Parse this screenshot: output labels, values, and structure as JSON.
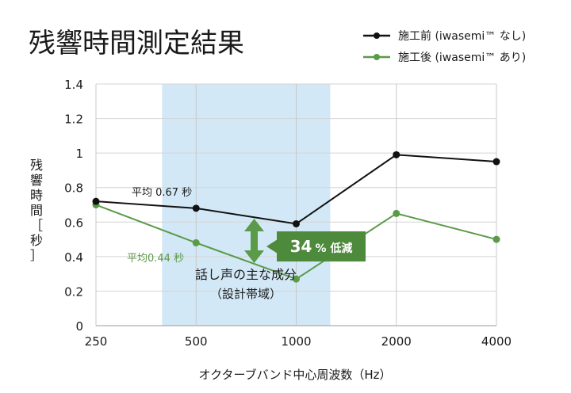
{
  "chart_data": {
    "type": "line",
    "title": "残響時間測定結果",
    "xlabel": "オクターブバンド中心周波数（Hz）",
    "ylabel_chars": [
      "残",
      "響",
      "時",
      "間",
      "［",
      "秒",
      "］"
    ],
    "categories": [
      "250",
      "500",
      "1000",
      "2000",
      "4000"
    ],
    "ylim": [
      0,
      1.4
    ],
    "yticks": [
      "0",
      "0.2",
      "0.4",
      "0.6",
      "0.8",
      "1",
      "1.2",
      "1.4"
    ],
    "ytick_values": [
      0,
      0.2,
      0.4,
      0.6,
      0.8,
      1.0,
      1.2,
      1.4
    ],
    "grid": true,
    "legend_position": "top-right",
    "series": [
      {
        "name": "施工前 (iwasemi™ なし)",
        "color": "#111111",
        "values": [
          0.72,
          0.68,
          0.59,
          0.99,
          0.95
        ]
      },
      {
        "name": "施工後 (iwasemi™ あり)",
        "color": "#5a9a48",
        "values": [
          0.7,
          0.48,
          0.27,
          0.65,
          0.5
        ]
      }
    ],
    "speech_band": {
      "from_category_index": 0.66,
      "to_category_index": 2.34,
      "color": "#d3e8f6"
    },
    "annotations": {
      "before_avg": "平均 0.67 秒",
      "after_avg": "平均0.44 秒",
      "reduction_number": "34",
      "reduction_suffix": "% 低減",
      "speech_line1": "話し声の主な成分",
      "speech_line2": "（設計帯域）"
    },
    "arrow_color": "#5a9a48",
    "badge_color": "#4d8a3c"
  }
}
